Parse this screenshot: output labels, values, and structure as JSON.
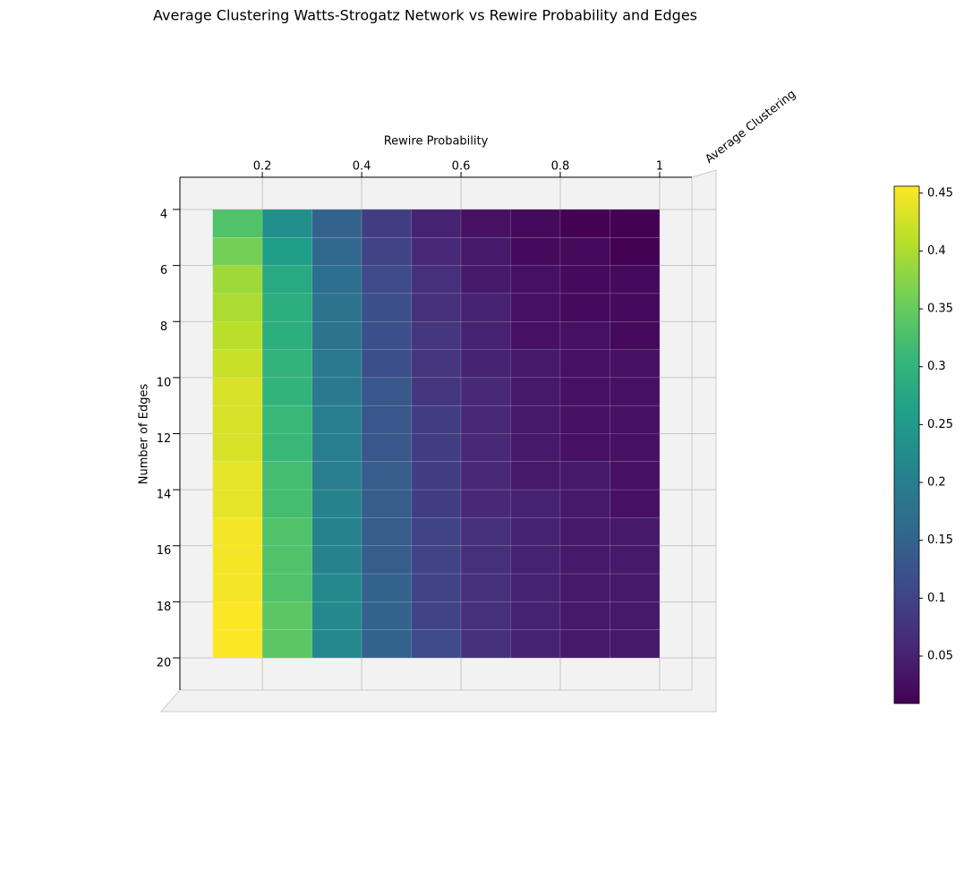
{
  "chart_data": {
    "type": "heatmap",
    "title": "Average Clustering Watts-Strogatz Network vs Rewire Probability and Edges",
    "x_label": "Rewire Probability",
    "y_label": "Number of Edges",
    "z_label": "Average Clustering",
    "colormap": "viridis",
    "x": [
      0.1,
      0.2,
      0.3,
      0.4,
      0.5,
      0.6,
      0.7,
      0.8,
      0.9,
      1.0
    ],
    "y": [
      4,
      5,
      6,
      7,
      8,
      9,
      10,
      11,
      12,
      13,
      14,
      15,
      16,
      17,
      18,
      19,
      20
    ],
    "z": [
      [
        0.33,
        0.23,
        0.15,
        0.09,
        0.05,
        0.03,
        0.02,
        0.01,
        0.01
      ],
      [
        0.36,
        0.26,
        0.16,
        0.1,
        0.06,
        0.04,
        0.02,
        0.02,
        0.01
      ],
      [
        0.39,
        0.28,
        0.17,
        0.11,
        0.07,
        0.04,
        0.03,
        0.02,
        0.02
      ],
      [
        0.4,
        0.29,
        0.18,
        0.12,
        0.07,
        0.05,
        0.03,
        0.02,
        0.02
      ],
      [
        0.41,
        0.29,
        0.18,
        0.12,
        0.08,
        0.05,
        0.03,
        0.03,
        0.02
      ],
      [
        0.42,
        0.3,
        0.19,
        0.12,
        0.08,
        0.05,
        0.04,
        0.03,
        0.03
      ],
      [
        0.43,
        0.3,
        0.19,
        0.13,
        0.08,
        0.06,
        0.04,
        0.03,
        0.03
      ],
      [
        0.43,
        0.31,
        0.2,
        0.13,
        0.09,
        0.06,
        0.04,
        0.03,
        0.03
      ],
      [
        0.43,
        0.31,
        0.2,
        0.13,
        0.09,
        0.06,
        0.04,
        0.03,
        0.03
      ],
      [
        0.44,
        0.32,
        0.2,
        0.14,
        0.09,
        0.06,
        0.04,
        0.04,
        0.03
      ],
      [
        0.44,
        0.32,
        0.21,
        0.14,
        0.09,
        0.06,
        0.05,
        0.04,
        0.03
      ],
      [
        0.45,
        0.33,
        0.21,
        0.14,
        0.1,
        0.07,
        0.05,
        0.04,
        0.04
      ],
      [
        0.45,
        0.33,
        0.21,
        0.14,
        0.1,
        0.07,
        0.05,
        0.04,
        0.04
      ],
      [
        0.45,
        0.33,
        0.22,
        0.15,
        0.1,
        0.07,
        0.05,
        0.04,
        0.04
      ],
      [
        0.455,
        0.34,
        0.22,
        0.15,
        0.1,
        0.07,
        0.05,
        0.04,
        0.04
      ],
      [
        0.455,
        0.34,
        0.22,
        0.15,
        0.11,
        0.07,
        0.05,
        0.04,
        0.04
      ]
    ],
    "xlim": [
      0.034,
      1.065
    ],
    "xticks": [
      0.2,
      0.4,
      0.6,
      0.8,
      1.0
    ],
    "ylim": [
      2.85,
      21.15
    ],
    "yticks": [
      4,
      6,
      8,
      10,
      12,
      14,
      16,
      18,
      20
    ],
    "clim": [
      0.009,
      0.456
    ],
    "cticks": [
      0.05,
      0.1,
      0.15,
      0.2,
      0.25,
      0.3,
      0.35,
      0.4,
      0.45
    ]
  }
}
